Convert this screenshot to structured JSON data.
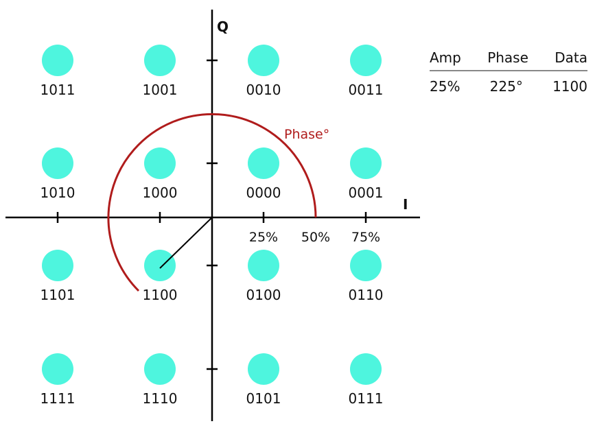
{
  "diagram": {
    "axis_labels": {
      "i": "I",
      "q": "Q"
    },
    "tick_labels": [
      "25%",
      "50%",
      "75%"
    ],
    "phase_label": "Phase°",
    "highlighted_symbol": "1100",
    "symbols": [
      [
        "1011",
        "1001",
        "0010",
        "0011"
      ],
      [
        "1010",
        "1000",
        "0000",
        "0001"
      ],
      [
        "1101",
        "1100",
        "0100",
        "0110"
      ],
      [
        "1111",
        "1110",
        "0101",
        "0111"
      ]
    ],
    "colors": {
      "dot": "#4ef5de",
      "phase_arc": "#b01c1c",
      "axis": "#000000"
    }
  },
  "info_table": {
    "headers": [
      "Amp",
      "Phase",
      "Data"
    ],
    "values": [
      "25%",
      "225°",
      "1100"
    ]
  }
}
